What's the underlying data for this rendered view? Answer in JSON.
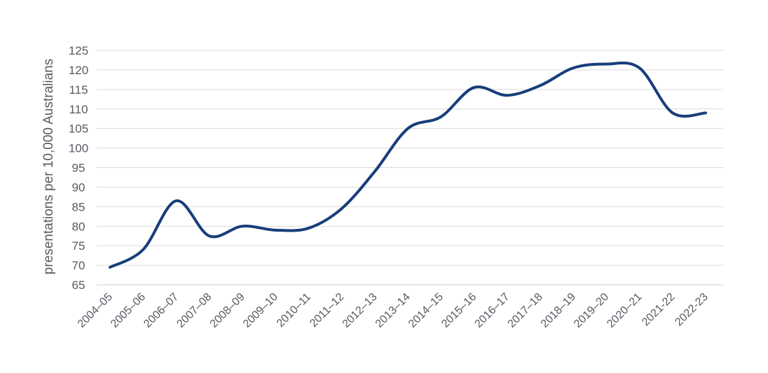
{
  "chart_data": {
    "type": "line",
    "title": "",
    "xlabel": "",
    "ylabel": "presentations per 10,000 Australians",
    "ylim": [
      65,
      125
    ],
    "yticks": [
      65,
      70,
      75,
      80,
      85,
      90,
      95,
      100,
      105,
      110,
      115,
      120,
      125
    ],
    "grid": true,
    "legend": "none",
    "categories": [
      "2004–05",
      "2005–06",
      "2006–07",
      "2007–08",
      "2008–09",
      "2009–10",
      "2010–11",
      "2011–12",
      "2012–13",
      "2013–14",
      "2014–15",
      "2015–16",
      "2016–17",
      "2017–18",
      "2018–19",
      "2019–20",
      "2020–21",
      "2021-22",
      "2022-23"
    ],
    "series": [
      {
        "values": [
          69.5,
          74,
          86.5,
          77.5,
          80,
          79,
          79.5,
          84.5,
          94,
          105,
          108,
          115.5,
          113.5,
          116,
          120.5,
          121.5,
          120.5,
          109,
          109
        ],
        "color": "#173e7a"
      }
    ]
  }
}
